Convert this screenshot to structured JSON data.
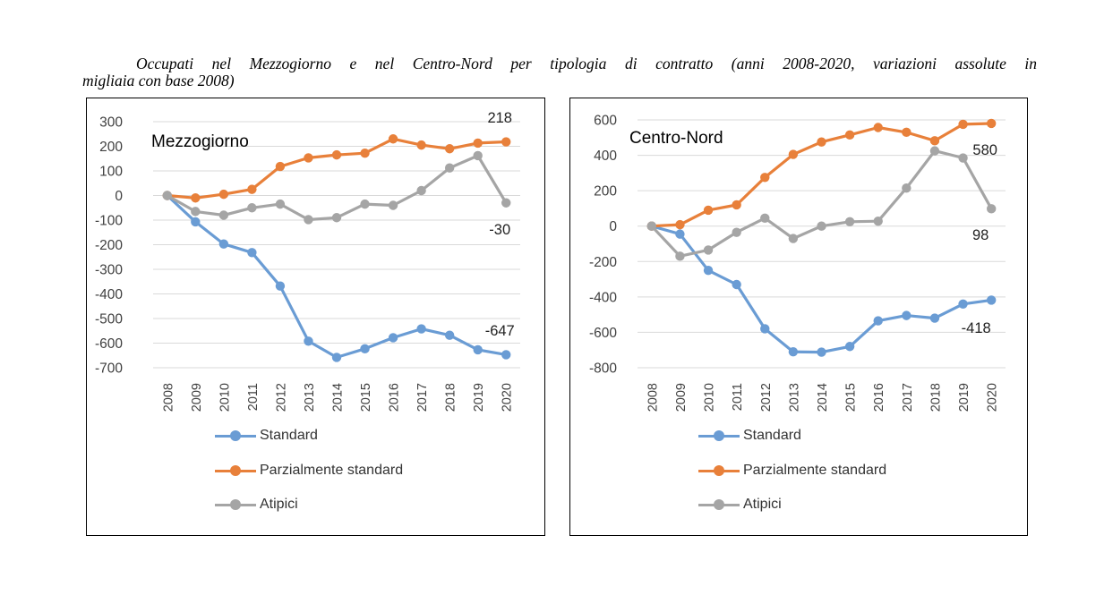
{
  "caption": {
    "line1": "Occupati nel Mezzogiorno e nel Centro-Nord per tipologia di contratto (anni 2008-2020, variazioni assolute in",
    "line2": "migliaia con base 2008)"
  },
  "legend": [
    {
      "name": "Standard",
      "color": "#6a9cd4"
    },
    {
      "name": "Parzialmente standard",
      "color": "#e8803a"
    },
    {
      "name": "Atipici",
      "color": "#a5a5a5"
    }
  ],
  "chart_data": [
    {
      "type": "line",
      "title": "Mezzogiorno",
      "categories": [
        "2008",
        "2009",
        "2010",
        "2011",
        "2012",
        "2013",
        "2014",
        "2015",
        "2016",
        "2017",
        "2018",
        "2019",
        "2020"
      ],
      "ylim": [
        -700,
        300
      ],
      "yticks": [
        300,
        200,
        100,
        0,
        -100,
        -200,
        -300,
        -400,
        -500,
        -600,
        -700
      ],
      "grid": true,
      "legend_position": "bottom",
      "series": [
        {
          "name": "Standard",
          "color": "#6a9cd4",
          "values": [
            0,
            -107,
            -197,
            -232,
            -368,
            -592,
            -658,
            -623,
            -578,
            -542,
            -568,
            -627,
            -647
          ]
        },
        {
          "name": "Parzialmente standard",
          "color": "#e8803a",
          "values": [
            0,
            -10,
            5,
            25,
            118,
            153,
            165,
            172,
            230,
            205,
            190,
            213,
            218
          ]
        },
        {
          "name": "Atipici",
          "color": "#a5a5a5",
          "values": [
            0,
            -65,
            -80,
            -50,
            -35,
            -98,
            -90,
            -35,
            -40,
            20,
            112,
            162,
            -30
          ]
        }
      ],
      "annotations": [
        "218",
        "-30",
        "-647"
      ]
    },
    {
      "type": "line",
      "title": "Centro-Nord",
      "categories": [
        "2008",
        "2009",
        "2010",
        "2011",
        "2012",
        "2013",
        "2014",
        "2015",
        "2016",
        "2017",
        "2018",
        "2019",
        "2020"
      ],
      "ylim": [
        -800,
        600
      ],
      "yticks": [
        600,
        400,
        200,
        0,
        -200,
        -400,
        -600,
        -800
      ],
      "grid": true,
      "legend_position": "bottom",
      "series": [
        {
          "name": "Standard",
          "color": "#6a9cd4",
          "values": [
            0,
            -45,
            -250,
            -330,
            -580,
            -710,
            -712,
            -680,
            -535,
            -505,
            -520,
            -440,
            -418
          ]
        },
        {
          "name": "Parzialmente standard",
          "color": "#e8803a",
          "values": [
            0,
            8,
            90,
            120,
            275,
            405,
            475,
            515,
            557,
            530,
            482,
            575,
            580
          ]
        },
        {
          "name": "Atipici",
          "color": "#a5a5a5",
          "values": [
            0,
            -170,
            -135,
            -35,
            45,
            -70,
            0,
            25,
            28,
            215,
            425,
            385,
            98
          ]
        }
      ],
      "annotations": [
        "580",
        "98",
        "-418"
      ]
    }
  ]
}
